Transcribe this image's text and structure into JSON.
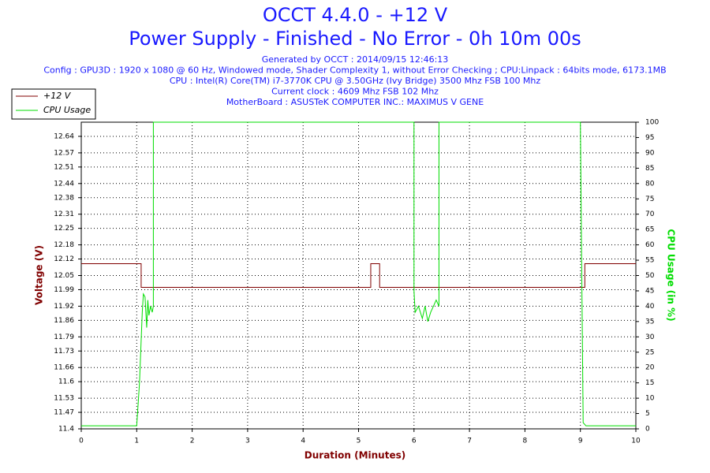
{
  "chart_data": {
    "type": "line",
    "title": "OCCT 4.4.0 - +12 V",
    "subtitle": "Power Supply - Finished - No Error - 0h 10m 00s",
    "info": [
      "Generated by OCCT : 2014/09/15 12:46:13",
      "Config : GPU3D : 1920 x 1080 @ 60 Hz, Windowed mode, Shader Complexity 1, without Error Checking ; CPU:Linpack : 64bits mode, 6173.1MB",
      "CPU : Intel(R) Core(TM) i7-3770K CPU @ 3.50GHz (Ivy Bridge) 3500 Mhz FSB 100 Mhz",
      "Current clock : 4609 Mhz FSB 102 Mhz",
      "MotherBoard : ASUSTeK COMPUTER INC.: MAXIMUS V GENE"
    ],
    "x_label": "Duration (Minutes)",
    "y_label": "Voltage (V)",
    "y2_label": "CPU Usage (in %)",
    "xlim": [
      0,
      10
    ],
    "xticks": [
      0,
      1,
      2,
      3,
      4,
      5,
      6,
      7,
      8,
      9,
      10
    ],
    "ylim": [
      11.4,
      12.7
    ],
    "yticks": [
      11.4,
      11.47,
      11.53,
      11.6,
      11.66,
      11.73,
      11.79,
      11.86,
      11.92,
      11.99,
      12.05,
      12.12,
      12.18,
      12.25,
      12.31,
      12.38,
      12.44,
      12.51,
      12.57,
      12.64
    ],
    "y2lim": [
      0,
      100
    ],
    "y2ticks": [
      0,
      5,
      10,
      15,
      20,
      25,
      30,
      35,
      40,
      45,
      50,
      55,
      60,
      65,
      70,
      75,
      80,
      85,
      90,
      95,
      100
    ],
    "grid": true,
    "legend": "top-left",
    "series": [
      {
        "name": "+12 V",
        "color": "#800000",
        "x": [
          0,
          1.08,
          1.08,
          5.22,
          5.22,
          5.38,
          5.38,
          9.08,
          9.08,
          10
        ],
        "values": [
          12.1,
          12.1,
          12.0,
          12.0,
          12.1,
          12.1,
          12.0,
          12.0,
          12.1,
          12.1
        ]
      },
      {
        "name": "CPU Usage",
        "color": "#00dd00",
        "axis": "y2",
        "x": [
          0,
          0.5,
          1.0,
          1.05,
          1.1,
          1.12,
          1.15,
          1.18,
          1.2,
          1.22,
          1.25,
          1.28,
          1.3,
          1.3,
          6.0,
          6.0,
          6.02,
          6.08,
          6.15,
          6.2,
          6.25,
          6.3,
          6.35,
          6.4,
          6.45,
          6.45,
          9.0,
          9.02,
          9.05,
          9.1,
          9.5,
          10
        ],
        "values": [
          1,
          1,
          1,
          15,
          38,
          44,
          43,
          33,
          42,
          37,
          40,
          38,
          40,
          100,
          100,
          45,
          38,
          40,
          36,
          40,
          35,
          38,
          40,
          42,
          40,
          100,
          100,
          60,
          2,
          1,
          1,
          1
        ]
      }
    ]
  }
}
